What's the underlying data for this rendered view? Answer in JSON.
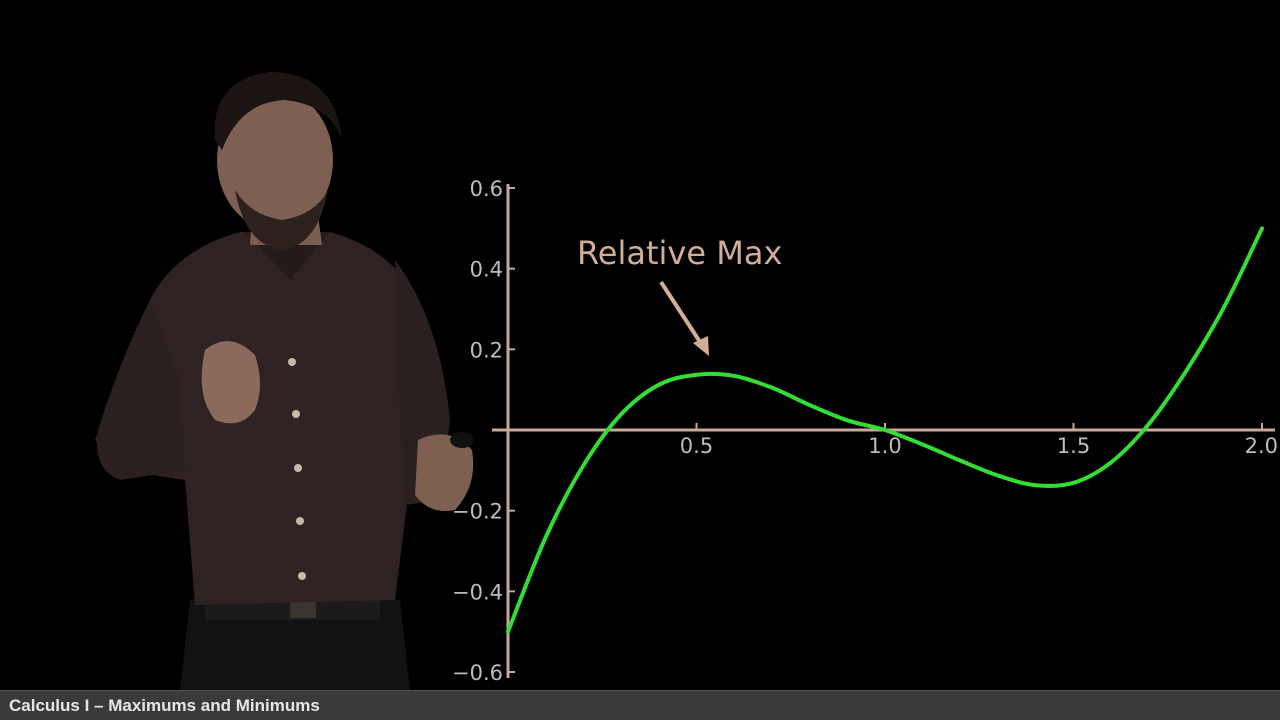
{
  "footer": {
    "title": "Calculus I – Maximums and Minimums"
  },
  "colors": {
    "background": "#000000",
    "curve": "#33dd33",
    "axis": "#c8a898",
    "tick_label": "#bdbdbd",
    "annotation": "#d2ad97",
    "footer_bg": "#3a3a3a"
  },
  "chart_data": {
    "type": "line",
    "title": "",
    "xlabel": "",
    "ylabel": "",
    "xlim": [
      0,
      2
    ],
    "ylim": [
      -0.6,
      0.6
    ],
    "grid": false,
    "x_ticks": [
      0.5,
      1.0,
      1.5,
      2.0
    ],
    "x_tick_labels": [
      "0.5",
      "1.0",
      "1.5",
      "2.0"
    ],
    "y_ticks": [
      0.6,
      0.4,
      0.2,
      -0.2,
      -0.4,
      -0.6
    ],
    "y_tick_labels": [
      "0.6",
      "0.4",
      "0.2",
      "−0.2",
      "−0.4",
      "−0.6"
    ],
    "series": [
      {
        "x": [
          0,
          0.1,
          0.2,
          0.3,
          0.4,
          0.5,
          0.6,
          0.7,
          0.8,
          0.9,
          1.0,
          1.1,
          1.2,
          1.3,
          1.4,
          1.5,
          1.6,
          1.7,
          1.8,
          1.9,
          2.0
        ],
        "y": [
          -0.5,
          -0.266,
          -0.088,
          0.039,
          0.112,
          0.137,
          0.134,
          0.105,
          0.062,
          0.024,
          0.0,
          -0.036,
          -0.076,
          -0.113,
          -0.137,
          -0.131,
          -0.08,
          0.015,
          0.148,
          0.306,
          0.5
        ]
      }
    ],
    "annotations": [
      {
        "text": "Relative Max",
        "points_to": [
          0.56,
          0.13
        ]
      }
    ]
  }
}
